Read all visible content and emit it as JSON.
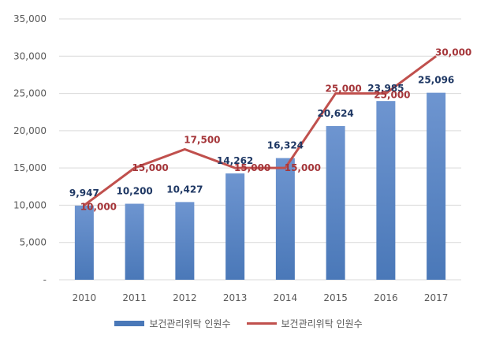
{
  "chart_data": {
    "type": "bar",
    "categories": [
      "2010",
      "2011",
      "2012",
      "2013",
      "2014",
      "2015",
      "2016",
      "2017"
    ],
    "series": [
      {
        "name": "보건관리위탁 인원수",
        "type": "bar",
        "values": [
          9947,
          10200,
          10427,
          14262,
          16324,
          20624,
          23985,
          25096
        ],
        "labels": [
          "9,947",
          "10,200",
          "10,427",
          "14,262",
          "16,324",
          "20,624",
          "23,985",
          "25,096"
        ],
        "color": "#4a78b8"
      },
      {
        "name": "보건관리위탁 인원수",
        "type": "line",
        "values": [
          10000,
          15000,
          17500,
          15000,
          15000,
          25000,
          25000,
          30000
        ],
        "labels": [
          "10,000",
          "15,000",
          "17,500",
          "15,000",
          "15,000",
          "25,000",
          "25,000",
          "30,000"
        ],
        "color": "#c0504d"
      }
    ],
    "ylim": [
      0,
      35000
    ],
    "yticks": [
      {
        "value": 0,
        "label": "-"
      },
      {
        "value": 5000,
        "label": "5,000"
      },
      {
        "value": 10000,
        "label": "10,000"
      },
      {
        "value": 15000,
        "label": "15,000"
      },
      {
        "value": 20000,
        "label": "20,000"
      },
      {
        "value": 25000,
        "label": "25,000"
      },
      {
        "value": 30000,
        "label": "30,000"
      },
      {
        "value": 35000,
        "label": "35,000"
      }
    ],
    "grid": true,
    "legend": "bottom"
  },
  "legend": {
    "bar_label": "보건관리위탁 인원수",
    "line_label": "보건관리위탁 인원수"
  }
}
